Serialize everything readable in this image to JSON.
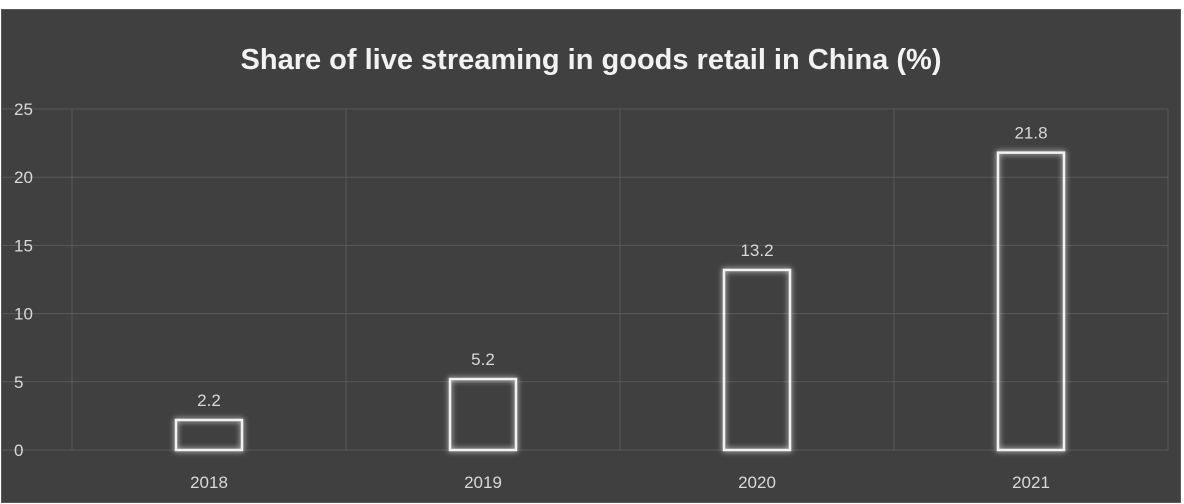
{
  "chart_data": {
    "type": "bar",
    "title": "Share of live streaming in goods retail in China (%)",
    "categories": [
      "2018",
      "2019",
      "2020",
      "2021"
    ],
    "values": [
      2.2,
      5.2,
      13.2,
      21.8
    ],
    "data_labels": [
      "2.2",
      "5.2",
      "13.2",
      "21.8"
    ],
    "y_ticks": [
      "0",
      "5",
      "10",
      "15",
      "20",
      "25"
    ],
    "xlabel": "",
    "ylabel": "",
    "ylim": [
      0,
      25
    ],
    "grid": true,
    "legend": "none"
  },
  "colors": {
    "background": "#404040",
    "bar_outline": "#f2f2f2",
    "bar_glow": "#bfbfbf",
    "gridline": "#595959",
    "text": "#d9d9d9",
    "title": "#f2f2f2"
  }
}
